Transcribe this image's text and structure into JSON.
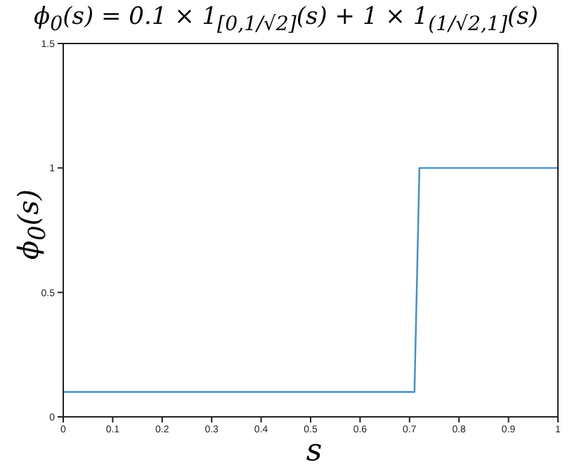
{
  "chart_data": {
    "type": "line",
    "title": "ϕ$_{0}$(s) = 0.1 × 1$_{[0,1/√2]}$(s) + 1 × 1$_{(1/√2,1]}$(s)",
    "xlabel": "s",
    "ylabel": "ϕ$_{0}$(s)",
    "x": [
      0,
      0.71,
      0.72,
      1
    ],
    "series": [
      {
        "color": "#3a8fd6",
        "values": [
          0.1,
          0.1,
          1,
          1
        ]
      }
    ],
    "xlim": [
      0,
      1
    ],
    "xticks": [
      0,
      0.1,
      0.2,
      0.3,
      0.4,
      0.5,
      0.6,
      0.7,
      0.8,
      0.9,
      1
    ],
    "ylim": [
      0,
      1.5
    ],
    "yticks": [
      0,
      0.5,
      1,
      1.5
    ],
    "grid": false,
    "legend": false,
    "marker": "none",
    "line_style": "solid"
  }
}
